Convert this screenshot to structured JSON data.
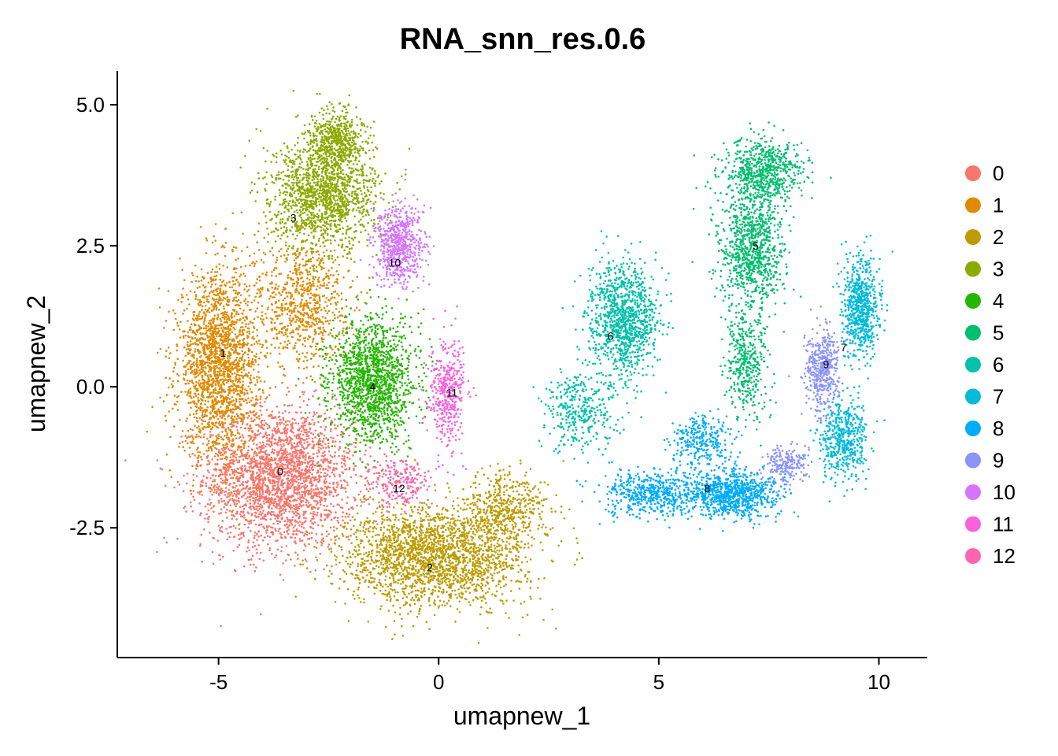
{
  "chart_data": {
    "type": "scatter",
    "title": "RNA_snn_res.0.6",
    "xlabel": "umapnew_1",
    "ylabel": "umapnew_2",
    "xlim": [
      -7.3,
      11.1
    ],
    "ylim": [
      -4.8,
      5.6
    ],
    "x_ticks": [
      {
        "value": -5,
        "label": "-5"
      },
      {
        "value": 0,
        "label": "0"
      },
      {
        "value": 5,
        "label": "5"
      },
      {
        "value": 10,
        "label": "10"
      }
    ],
    "y_ticks": [
      {
        "value": -2.5,
        "label": "-2.5"
      },
      {
        "value": 0,
        "label": "0.0"
      },
      {
        "value": 2.5,
        "label": "2.5"
      },
      {
        "value": 5,
        "label": "5.0"
      }
    ],
    "grid": false,
    "legend_position": "right",
    "series": [
      {
        "name": "0",
        "color": "#F8766D",
        "label_pos": [
          -3.6,
          -1.5
        ]
      },
      {
        "name": "1",
        "color": "#E18A00",
        "label_pos": [
          -4.9,
          0.6
        ]
      },
      {
        "name": "2",
        "color": "#BE9C00",
        "label_pos": [
          -0.2,
          -3.2
        ]
      },
      {
        "name": "3",
        "color": "#8CAB00",
        "label_pos": [
          -3.3,
          3.0
        ]
      },
      {
        "name": "4",
        "color": "#24B700",
        "label_pos": [
          -1.5,
          0.0
        ]
      },
      {
        "name": "5",
        "color": "#00BE70",
        "label_pos": [
          7.2,
          2.5
        ]
      },
      {
        "name": "6",
        "color": "#00C1AB",
        "label_pos": [
          3.9,
          0.9
        ]
      },
      {
        "name": "7",
        "color": "#00BBDA",
        "label_pos": [
          9.2,
          0.7
        ]
      },
      {
        "name": "8",
        "color": "#00ACFC",
        "label_pos": [
          6.1,
          -1.8
        ]
      },
      {
        "name": "9",
        "color": "#8B93FF",
        "label_pos": [
          8.8,
          0.4
        ]
      },
      {
        "name": "10",
        "color": "#D575FE",
        "label_pos": [
          -1.0,
          2.2
        ]
      },
      {
        "name": "11",
        "color": "#F962DD",
        "label_pos": [
          0.3,
          -0.1
        ]
      },
      {
        "name": "12",
        "color": "#FF65AC",
        "label_pos": [
          -0.9,
          -1.8
        ]
      }
    ],
    "cluster_blobs": [
      {
        "cluster": "0",
        "cx": -3.6,
        "cy": -1.6,
        "sx": 1.45,
        "sy": 1.05,
        "n": 2600
      },
      {
        "cluster": "1",
        "cx": -5.0,
        "cy": 0.4,
        "sx": 0.75,
        "sy": 1.35,
        "n": 2000
      },
      {
        "cluster": "1",
        "cx": -3.1,
        "cy": 1.5,
        "sx": 0.9,
        "sy": 1.0,
        "n": 800
      },
      {
        "cluster": "2",
        "cx": -0.1,
        "cy": -3.0,
        "sx": 1.7,
        "sy": 0.75,
        "n": 2200
      },
      {
        "cluster": "2",
        "cx": 1.5,
        "cy": -2.2,
        "sx": 0.8,
        "sy": 0.6,
        "n": 500
      },
      {
        "cluster": "3",
        "cx": -2.6,
        "cy": 3.4,
        "sx": 1.0,
        "sy": 0.8,
        "n": 1500
      },
      {
        "cluster": "3",
        "cx": -2.3,
        "cy": 4.4,
        "sx": 0.5,
        "sy": 0.45,
        "n": 500
      },
      {
        "cluster": "4",
        "cx": -1.5,
        "cy": 0.1,
        "sx": 0.8,
        "sy": 0.9,
        "n": 1500
      },
      {
        "cluster": "5",
        "cx": 7.1,
        "cy": 2.4,
        "sx": 0.6,
        "sy": 0.9,
        "n": 900
      },
      {
        "cluster": "5",
        "cx": 7.4,
        "cy": 3.8,
        "sx": 0.75,
        "sy": 0.5,
        "n": 700
      },
      {
        "cluster": "5",
        "cx": 7.0,
        "cy": 0.4,
        "sx": 0.4,
        "sy": 0.8,
        "n": 400
      },
      {
        "cluster": "6",
        "cx": 4.2,
        "cy": 1.2,
        "sx": 0.65,
        "sy": 0.8,
        "n": 1100
      },
      {
        "cluster": "6",
        "cx": 3.2,
        "cy": -0.4,
        "sx": 0.7,
        "sy": 0.6,
        "n": 350
      },
      {
        "cluster": "7",
        "cx": 9.6,
        "cy": 1.4,
        "sx": 0.35,
        "sy": 0.7,
        "n": 700
      },
      {
        "cluster": "7",
        "cx": 9.2,
        "cy": -0.9,
        "sx": 0.45,
        "sy": 0.6,
        "n": 500
      },
      {
        "cluster": "8",
        "cx": 6.6,
        "cy": -1.9,
        "sx": 0.9,
        "sy": 0.35,
        "n": 900
      },
      {
        "cluster": "8",
        "cx": 4.8,
        "cy": -1.9,
        "sx": 0.9,
        "sy": 0.35,
        "n": 500
      },
      {
        "cluster": "8",
        "cx": 6.0,
        "cy": -1.0,
        "sx": 0.6,
        "sy": 0.4,
        "n": 300
      },
      {
        "cluster": "9",
        "cx": 8.7,
        "cy": 0.3,
        "sx": 0.3,
        "sy": 0.6,
        "n": 450
      },
      {
        "cluster": "9",
        "cx": 7.9,
        "cy": -1.4,
        "sx": 0.4,
        "sy": 0.3,
        "n": 200
      },
      {
        "cluster": "10",
        "cx": -0.9,
        "cy": 2.5,
        "sx": 0.45,
        "sy": 0.6,
        "n": 650
      },
      {
        "cluster": "11",
        "cx": 0.2,
        "cy": -0.1,
        "sx": 0.35,
        "sy": 0.8,
        "n": 400
      },
      {
        "cluster": "12",
        "cx": -0.9,
        "cy": -1.7,
        "sx": 0.5,
        "sy": 0.35,
        "n": 200
      }
    ]
  }
}
